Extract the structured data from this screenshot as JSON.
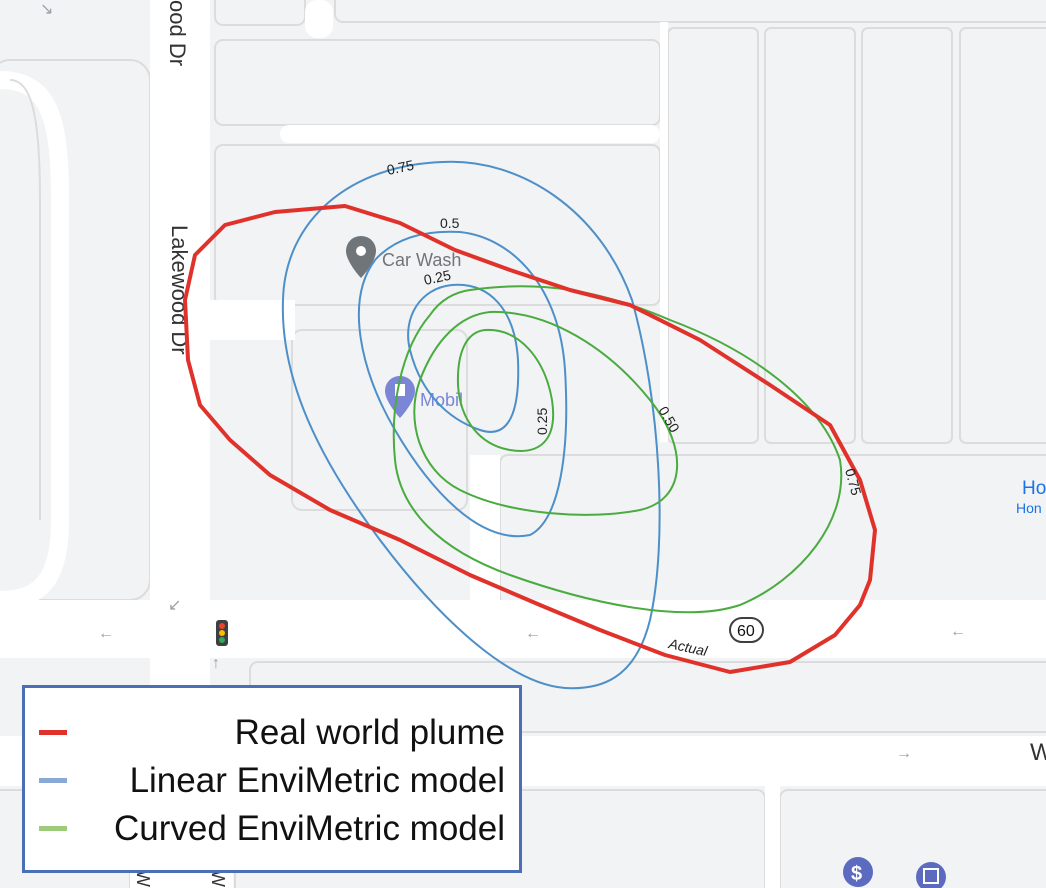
{
  "streets": {
    "top_street": "ood Dr",
    "main_street": "Lakewood Dr",
    "route_shield": "60",
    "edge_right_1": "Ho",
    "edge_right_2": "Hon",
    "edge_right_3": "W",
    "bottom_1": "W",
    "bottom_2": "W"
  },
  "pois": {
    "car_wash": "Car Wash",
    "mobil": "Mobil"
  },
  "contours": {
    "linear_outer": "0.75",
    "linear_mid": "0.5",
    "linear_inner": "0.25",
    "curved_inner": "0.25",
    "curved_mid": "0.50",
    "curved_outer": "0.75",
    "actual": "Actual"
  },
  "legend": {
    "items": [
      {
        "label": "Real world plume",
        "color": "#e0322b"
      },
      {
        "label": "Linear EnviMetric model",
        "color": "#8aa9d6"
      },
      {
        "label": "Curved EnviMetric model",
        "color": "#9ccc7a"
      }
    ]
  },
  "colors": {
    "real": "#e0322b",
    "linear": "#4d8fc9",
    "curved": "#4aab3f",
    "map_bg": "#f1f3f4",
    "road": "#ffffff",
    "block_border": "#dadce0"
  },
  "icons": [
    "map-pin-icon",
    "gas-station-icon",
    "traffic-light-icon",
    "dollar-icon",
    "atm-icon",
    "direction-arrow-icon"
  ]
}
